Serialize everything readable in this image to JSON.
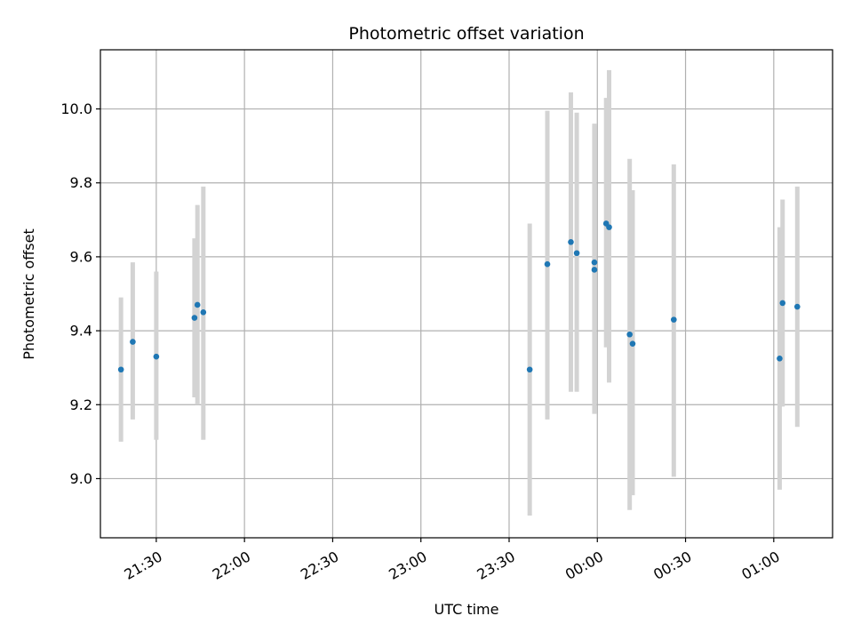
{
  "chart_data": {
    "type": "scatter",
    "title": "Photometric offset variation",
    "xlabel": "UTC time",
    "ylabel": "Photometric offset",
    "grid": true,
    "xlim": [
      "21:11",
      "01:20"
    ],
    "ylim": [
      8.84,
      10.16
    ],
    "x_ticks": [
      "21:30",
      "22:00",
      "22:30",
      "23:00",
      "23:30",
      "00:00",
      "00:30",
      "01:00"
    ],
    "y_ticks": [
      9.0,
      9.2,
      9.4,
      9.6,
      9.8,
      10.0
    ],
    "y_tick_labels": [
      "9.0",
      "9.2",
      "9.4",
      "9.6",
      "9.8",
      "10.0"
    ],
    "colors": {
      "points": "#1f77b4",
      "error_bars": "#d3d3d3",
      "grid": "#b0b0b0"
    },
    "series": [
      {
        "points": [
          {
            "x": "21:18",
            "y": 9.295,
            "ylow": 9.1,
            "yhigh": 9.49
          },
          {
            "x": "21:22",
            "y": 9.37,
            "ylow": 9.16,
            "yhigh": 9.585
          },
          {
            "x": "21:30",
            "y": 9.33,
            "ylow": 9.105,
            "yhigh": 9.56
          },
          {
            "x": "21:43",
            "y": 9.435,
            "ylow": 9.22,
            "yhigh": 9.65
          },
          {
            "x": "21:44",
            "y": 9.47,
            "ylow": 9.2,
            "yhigh": 9.74
          },
          {
            "x": "21:46",
            "y": 9.45,
            "ylow": 9.105,
            "yhigh": 9.79
          },
          {
            "x": "23:37",
            "y": 9.295,
            "ylow": 8.9,
            "yhigh": 9.69
          },
          {
            "x": "23:43",
            "y": 9.58,
            "ylow": 9.16,
            "yhigh": 9.995
          },
          {
            "x": "23:51",
            "y": 9.64,
            "ylow": 9.235,
            "yhigh": 10.045
          },
          {
            "x": "23:53",
            "y": 9.61,
            "ylow": 9.235,
            "yhigh": 9.99
          },
          {
            "x": "23:59",
            "y": 9.565,
            "ylow": 9.175,
            "yhigh": 9.955
          },
          {
            "x": "23:59",
            "y": 9.585,
            "ylow": 9.21,
            "yhigh": 9.96
          },
          {
            "x": "00:03",
            "y": 9.69,
            "ylow": 9.355,
            "yhigh": 10.03
          },
          {
            "x": "00:04",
            "y": 9.68,
            "ylow": 9.26,
            "yhigh": 10.105
          },
          {
            "x": "00:11",
            "y": 9.39,
            "ylow": 8.915,
            "yhigh": 9.865
          },
          {
            "x": "00:12",
            "y": 9.365,
            "ylow": 8.955,
            "yhigh": 9.78
          },
          {
            "x": "00:26",
            "y": 9.43,
            "ylow": 9.005,
            "yhigh": 9.85
          },
          {
            "x": "01:02",
            "y": 9.325,
            "ylow": 8.97,
            "yhigh": 9.68
          },
          {
            "x": "01:03",
            "y": 9.475,
            "ylow": 9.195,
            "yhigh": 9.755
          },
          {
            "x": "01:08",
            "y": 9.465,
            "ylow": 9.14,
            "yhigh": 9.79
          }
        ]
      }
    ]
  }
}
